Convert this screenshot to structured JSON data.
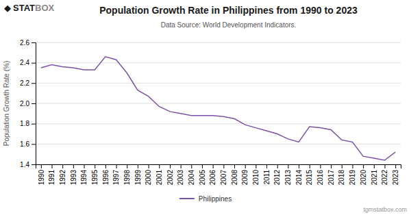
{
  "chart_data": {
    "type": "line",
    "title": "Population Growth Rate in Philippines from 1990 to 2023",
    "subtitle": "Data Source: World Development Indicators.",
    "y_label": "Population Growth Rate (%)",
    "annotations": [
      "◆",
      "STAT",
      "BOX",
      "tgmstatbox.com"
    ],
    "x": [
      1990,
      1991,
      1992,
      1993,
      1994,
      1995,
      1996,
      1997,
      1998,
      1999,
      2000,
      2001,
      2002,
      2003,
      2004,
      2005,
      2006,
      2007,
      2008,
      2009,
      2010,
      2011,
      2012,
      2013,
      2014,
      2015,
      2016,
      2017,
      2018,
      2019,
      2020,
      2021,
      2022,
      2023
    ],
    "series": [
      {
        "name": "Philippines",
        "color": "#7B52AB",
        "values": [
          2.35,
          2.38,
          2.36,
          2.35,
          2.33,
          2.33,
          2.46,
          2.43,
          2.3,
          2.13,
          2.07,
          1.97,
          1.92,
          1.9,
          1.88,
          1.88,
          1.88,
          1.87,
          1.85,
          1.79,
          1.76,
          1.73,
          1.7,
          1.65,
          1.62,
          1.77,
          1.76,
          1.74,
          1.64,
          1.62,
          1.48,
          1.46,
          1.44,
          1.52
        ]
      }
    ],
    "xlim": [
      1989.5,
      2023.5
    ],
    "xticks": [
      1990,
      1991,
      1992,
      1993,
      1994,
      1995,
      1996,
      1997,
      1998,
      1999,
      2000,
      2001,
      2002,
      2003,
      2004,
      2005,
      2006,
      2007,
      2008,
      2009,
      2010,
      2011,
      2012,
      2013,
      2014,
      2015,
      2016,
      2017,
      2018,
      2019,
      2020,
      2021,
      2022,
      2023
    ],
    "ylim": [
      1.4,
      2.6
    ],
    "yticks": [
      1.4,
      1.6,
      1.8,
      {
        "value": 2.0,
        "label": "2.0"
      },
      2.2,
      2.4,
      2.6
    ],
    "grid": true,
    "legend": "bottom"
  }
}
